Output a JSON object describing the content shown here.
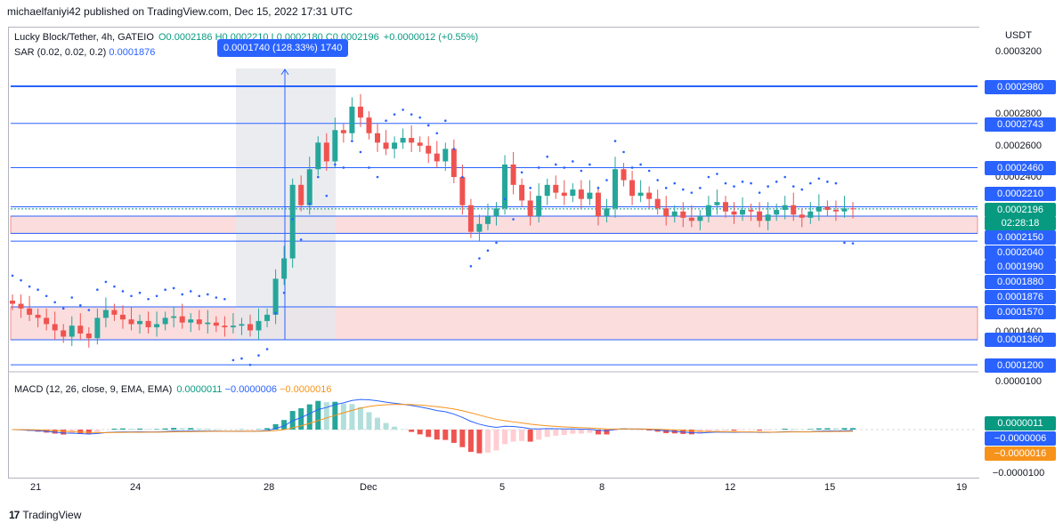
{
  "header": {
    "publisher_line": "michaelfaniyi42 published on TradingView.com, Dec 15, 2022 17:31 UTC"
  },
  "legend": {
    "symbol_line": "Lucky Block/Tether, 4h, GATEIO",
    "ohlc": "O0.0002186 H0.0002210 L0.0002180 C0.0002196",
    "change": "+0.0000012 (+0.55%)",
    "sar_label": "SAR (0.02, 0.02, 0.2)",
    "sar_value": "0.0001876",
    "macd_label": "MACD (12, 26, close, 9, EMA, EMA)",
    "macd_hist": "0.0000011",
    "macd_line": "−0.0000006",
    "macd_signal": "−0.0000016"
  },
  "measure_callout": "0.0001740 (128.33%) 1740",
  "price_axis": {
    "currency": "USDT",
    "plain_ticks": [
      "0.0003200",
      "0.0002800",
      "0.0002600",
      "0.0002400",
      "0.0001400",
      "0.0000100",
      "−0.0000100"
    ],
    "labels": [
      {
        "text": "0.0002980",
        "color": "#2962ff"
      },
      {
        "text": "0.0002743",
        "color": "#2962ff"
      },
      {
        "text": "0.0002460",
        "color": "#2962ff"
      },
      {
        "text": "0.0002210",
        "color": "#2962ff"
      },
      {
        "text": "0.0002196",
        "color": "#089981"
      },
      {
        "text": "02:28:18",
        "color": "#089981"
      },
      {
        "text": "0.0002150",
        "color": "#2962ff"
      },
      {
        "text": "0.0002040",
        "color": "#2962ff"
      },
      {
        "text": "0.0001990",
        "color": "#2962ff"
      },
      {
        "text": "0.0001880",
        "color": "#2962ff"
      },
      {
        "text": "0.0001876",
        "color": "#2962ff"
      },
      {
        "text": "0.0001570",
        "color": "#2962ff"
      },
      {
        "text": "0.0001360",
        "color": "#2962ff"
      },
      {
        "text": "0.0001200",
        "color": "#2962ff"
      }
    ],
    "macd_labels": [
      {
        "text": "0.0000011",
        "color": "#089981"
      },
      {
        "text": "−0.0000006",
        "color": "#2962ff"
      },
      {
        "text": "−0.0000016",
        "color": "#f7931a"
      }
    ]
  },
  "time_axis": [
    "21",
    "24",
    "28",
    "Dec",
    "5",
    "8",
    "12",
    "15",
    "19"
  ],
  "brand": "TradingView",
  "colors": {
    "up": "#26a69a",
    "down": "#ef5350",
    "line": "#2962ff",
    "signal": "#f7931a",
    "zone": "#f8c7c7"
  },
  "chart_data": {
    "type": "candlestick",
    "title": "Lucky Block/Tether, 4h, GATEIO",
    "horizontal_levels": [
      0.000298,
      0.0002743,
      0.000246,
      0.000221,
      0.000215,
      0.000204,
      0.000199,
      0.000157,
      0.000136,
      0.00012
    ],
    "zones": [
      {
        "from": 0.000215,
        "to": 0.000204
      },
      {
        "from": 0.000157,
        "to": 0.000136
      }
    ],
    "x_labels": [
      "21",
      "24",
      "28",
      "Dec",
      "5",
      "8",
      "12",
      "15",
      "19"
    ],
    "close": [
      0.000159,
      0.000156,
      0.000152,
      0.00015,
      0.000146,
      0.000142,
      0.000138,
      0.000145,
      0.00014,
      0.000137,
      0.00015,
      0.000155,
      0.000152,
      0.000149,
      0.000146,
      0.000148,
      0.000144,
      0.000146,
      0.00015,
      0.000151,
      0.000147,
      0.000149,
      0.000146,
      0.000147,
      0.000145,
      0.000144,
      0.000145,
      0.000146,
      0.000142,
      0.000148,
      0.000152,
      0.000175,
      0.000188,
      0.000235,
      0.000222,
      0.000245,
      0.000262,
      0.00025,
      0.00027,
      0.000268,
      0.000285,
      0.000278,
      0.000268,
      0.000262,
      0.000258,
      0.000262,
      0.000265,
      0.000262,
      0.00026,
      0.000255,
      0.00025,
      0.000258,
      0.00024,
      0.000222,
      0.000205,
      0.00021,
      0.000215,
      0.00022,
      0.000248,
      0.000235,
      0.000225,
      0.000215,
      0.000228,
      0.000235,
      0.00023,
      0.000228,
      0.000232,
      0.000226,
      0.00023,
      0.000215,
      0.00022,
      0.000245,
      0.000238,
      0.000228,
      0.00023,
      0.000226,
      0.00022,
      0.000215,
      0.000218,
      0.000214,
      0.000212,
      0.000215,
      0.000222,
      0.000224,
      0.000218,
      0.000216,
      0.000219,
      0.000218,
      0.000212,
      0.000216,
      0.000219,
      0.000222,
      0.000216,
      0.000214,
      0.000218,
      0.000221,
      0.000219,
      0.000218,
      0.00022,
      0.0002196
    ],
    "sar_last": 0.0001876,
    "macd_last": {
      "histogram": 1.1e-06,
      "macd": -6e-07,
      "signal": -1.6e-06
    }
  }
}
